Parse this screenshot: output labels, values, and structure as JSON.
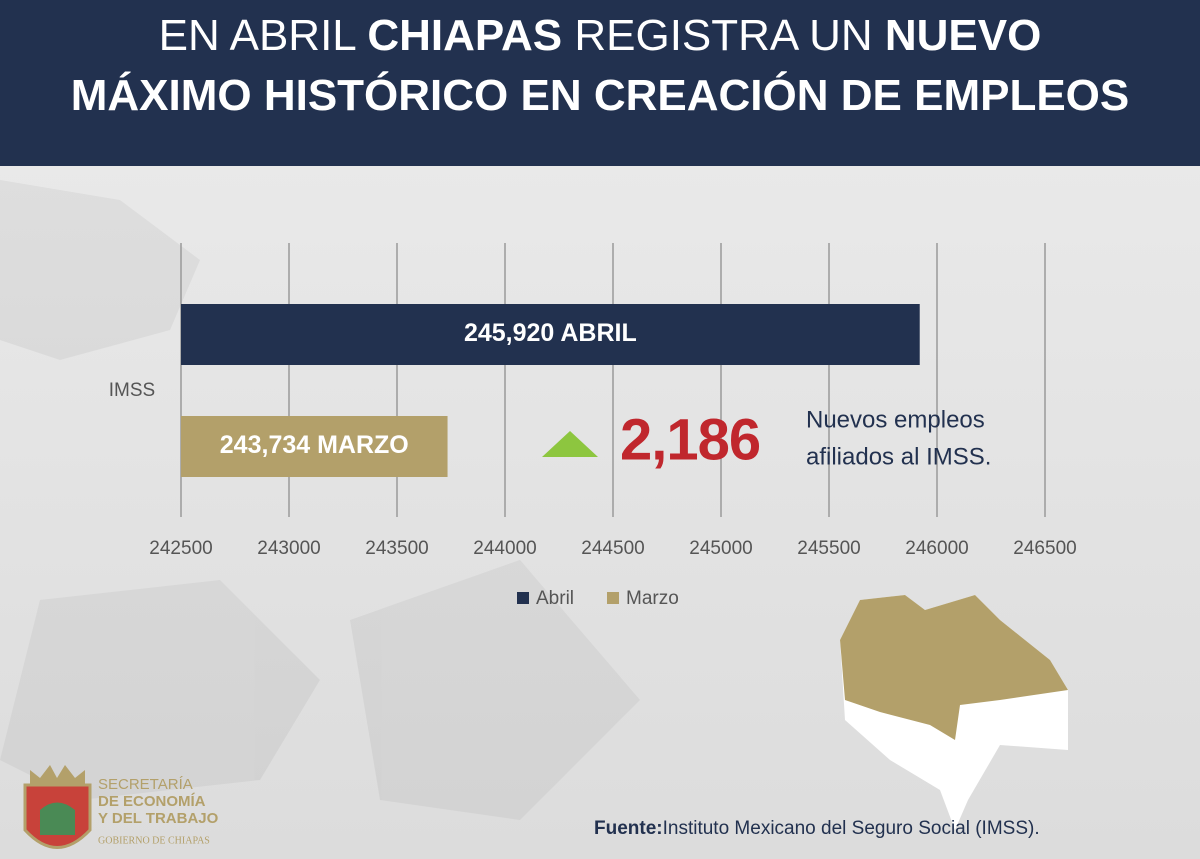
{
  "chart_data": {
    "type": "hbar",
    "title": [
      [
        {
          "text": "EN ABRIL ",
          "bold": false
        },
        {
          "text": "CHIAPAS",
          "bold": true
        },
        {
          "text": " REGISTRA UN ",
          "bold": false
        },
        {
          "text": "NUEVO",
          "bold": true
        }
      ],
      [
        {
          "text": "MÁXIMO HISTÓRICO EN CREACIÓN DE EMPLEOS",
          "bold": true
        }
      ]
    ],
    "categories": [
      "IMSS"
    ],
    "series": [
      {
        "name": "Abril",
        "color": "#22314f",
        "values": [
          245920
        ],
        "value_labels": [
          "245,920 ABRIL"
        ]
      },
      {
        "name": "Marzo",
        "color": "#b3a06a",
        "values": [
          243734
        ],
        "value_labels": [
          "243,734 MARZO"
        ]
      }
    ],
    "xlim": [
      242500,
      246500
    ],
    "xticks": [
      242500,
      243000,
      243500,
      244000,
      244500,
      245000,
      245500,
      246000,
      246500
    ],
    "grid": true,
    "legend": "bottom",
    "annotation": {
      "value": "2,186",
      "text": [
        "Nuevos empleos",
        "afiliados al IMSS."
      ]
    },
    "source": {
      "label": "Fuente:",
      "text": "Instituto Mexicano del Seguro Social (IMSS)."
    },
    "logo": {
      "lines": [
        "SECRETARÍA",
        "DE ECONOMÍA",
        "Y DEL TRABAJO"
      ],
      "footer": "GOBIERNO DE CHIAPAS"
    }
  }
}
